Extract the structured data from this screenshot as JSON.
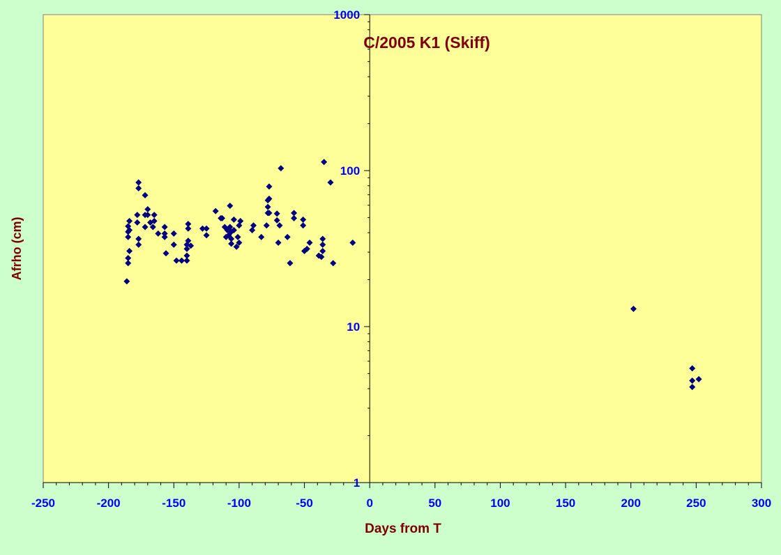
{
  "chart_data": {
    "type": "scatter",
    "title": "C/2005 K1 (Skiff)",
    "xlabel": "Days from T",
    "ylabel": "Afrho (cm)",
    "xlim": [
      -250,
      300
    ],
    "ylim": [
      1,
      1000
    ],
    "y_scale": "log",
    "x_ticks": [
      -250,
      -200,
      -150,
      -100,
      -50,
      0,
      50,
      100,
      150,
      200,
      250,
      300
    ],
    "x_tick_labels": [
      "-250",
      "-200",
      "-150",
      "-100",
      "-50",
      "0",
      "50",
      "100",
      "150",
      "200",
      "250",
      "300"
    ],
    "y_ticks": [
      1,
      10,
      100,
      1000
    ],
    "y_tick_labels": [
      "1",
      "10",
      "100",
      "1000"
    ],
    "grid": false,
    "legend": "none",
    "colors": {
      "page_background": "#ccffcc",
      "plot_background": "#ffff99",
      "marker": "#000080",
      "title_text": "#800000",
      "axis_title_text": "#800000",
      "tick_label_text": "#0000ff"
    },
    "series": [
      {
        "marker": "diamond",
        "points": [
          [
            -186,
            19.5
          ],
          [
            -185,
            25.5
          ],
          [
            -185,
            27.5
          ],
          [
            -184,
            30.5
          ],
          [
            -185,
            37.5
          ],
          [
            -185,
            40.5
          ],
          [
            -184,
            41.5
          ],
          [
            -185,
            44
          ],
          [
            -184,
            47.5
          ],
          [
            -178,
            46.5
          ],
          [
            -178,
            52
          ],
          [
            -177,
            33.5
          ],
          [
            -177,
            36.5
          ],
          [
            -177,
            77
          ],
          [
            -177,
            84
          ],
          [
            -172,
            43.5
          ],
          [
            -172,
            52
          ],
          [
            -172,
            69.5
          ],
          [
            -170,
            52
          ],
          [
            -170,
            56.5
          ],
          [
            -168,
            46.5
          ],
          [
            -166,
            43.5
          ],
          [
            -165,
            47.5
          ],
          [
            -165,
            52
          ],
          [
            -162,
            39.5
          ],
          [
            -157,
            37.5
          ],
          [
            -157,
            39.5
          ],
          [
            -157,
            43.5
          ],
          [
            -156,
            29.5
          ],
          [
            -150,
            33.5
          ],
          [
            -150,
            39.5
          ],
          [
            -148,
            26.5
          ],
          [
            -144,
            26.5
          ],
          [
            -140,
            26.5
          ],
          [
            -140,
            28.5
          ],
          [
            -140,
            31.5
          ],
          [
            -140,
            33.5
          ],
          [
            -139,
            35.5
          ],
          [
            -139,
            42.5
          ],
          [
            -139,
            45.5
          ],
          [
            -137,
            33
          ],
          [
            -128,
            42.5
          ],
          [
            -125,
            38.5
          ],
          [
            -125,
            42.5
          ],
          [
            -118,
            55
          ],
          [
            -114,
            49.5
          ],
          [
            -113,
            49.5
          ],
          [
            -111,
            43.5
          ],
          [
            -110,
            37.5
          ],
          [
            -109,
            41.5
          ],
          [
            -108,
            38.5
          ],
          [
            -107,
            43.5
          ],
          [
            -107,
            59.5
          ],
          [
            -106,
            36.5
          ],
          [
            -106,
            40.5
          ],
          [
            -106,
            34
          ],
          [
            -104,
            41.5
          ],
          [
            -104,
            48.5
          ],
          [
            -102,
            32.5
          ],
          [
            -101,
            37.5
          ],
          [
            -100,
            34.5
          ],
          [
            -100,
            44.5
          ],
          [
            -99,
            47.5
          ],
          [
            -90,
            41.5
          ],
          [
            -89,
            44.5
          ],
          [
            -83,
            37.5
          ],
          [
            -79,
            44.5
          ],
          [
            -78,
            53.5
          ],
          [
            -78,
            58.5
          ],
          [
            -78,
            64.5
          ],
          [
            -77,
            79
          ],
          [
            -77,
            66
          ],
          [
            -77,
            53.5
          ],
          [
            -71,
            53
          ],
          [
            -71,
            48
          ],
          [
            -70,
            34.5
          ],
          [
            -69,
            44.5
          ],
          [
            -68,
            103.5
          ],
          [
            -63,
            37.5
          ],
          [
            -61,
            25.5
          ],
          [
            -58,
            53.5
          ],
          [
            -58,
            49.5
          ],
          [
            -51,
            44.5
          ],
          [
            -51,
            48.5
          ],
          [
            -50,
            30.5
          ],
          [
            -48,
            31.5
          ],
          [
            -46,
            34.5
          ],
          [
            -39,
            28.5
          ],
          [
            -37,
            28
          ],
          [
            -36,
            30.5
          ],
          [
            -36,
            33.5
          ],
          [
            -36,
            36.5
          ],
          [
            -35,
            113.5
          ],
          [
            -30,
            84
          ],
          [
            -28,
            25.5
          ],
          [
            -13,
            34.5
          ],
          [
            202,
            13
          ],
          [
            247,
            4.1
          ],
          [
            247,
            4.5
          ],
          [
            247,
            5.4
          ],
          [
            252,
            4.6
          ]
        ]
      }
    ]
  }
}
